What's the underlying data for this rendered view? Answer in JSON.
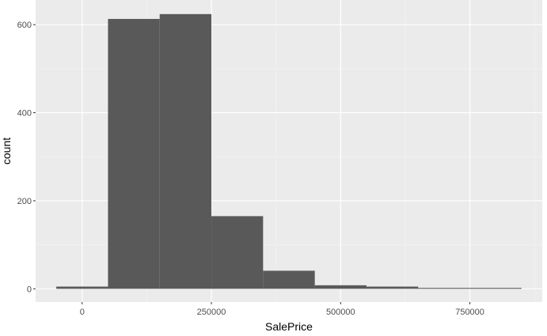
{
  "chart_data": {
    "type": "bar",
    "subtype": "histogram",
    "xlabel": "SalePrice",
    "ylabel": "count",
    "bin_width": 100000,
    "bins": [
      {
        "x_start": -50000,
        "x_end": 50000,
        "count": 5
      },
      {
        "x_start": 50000,
        "x_end": 150000,
        "count": 613
      },
      {
        "x_start": 150000,
        "x_end": 250000,
        "count": 624
      },
      {
        "x_start": 250000,
        "x_end": 350000,
        "count": 165
      },
      {
        "x_start": 350000,
        "x_end": 450000,
        "count": 41
      },
      {
        "x_start": 450000,
        "x_end": 550000,
        "count": 8
      },
      {
        "x_start": 550000,
        "x_end": 650000,
        "count": 5
      },
      {
        "x_start": 650000,
        "x_end": 750000,
        "count": 2
      },
      {
        "x_start": 750000,
        "x_end": 850000,
        "count": 2
      }
    ],
    "xlim": [
      -90000,
      890000
    ],
    "ylim": [
      -30,
      656
    ],
    "x_ticks": [
      {
        "value": 0,
        "label": "0"
      },
      {
        "value": 250000,
        "label": "250000"
      },
      {
        "value": 500000,
        "label": "500000"
      },
      {
        "value": 750000,
        "label": "750000"
      }
    ],
    "y_ticks": [
      {
        "value": 0,
        "label": "0"
      },
      {
        "value": 200,
        "label": "200"
      },
      {
        "value": 400,
        "label": "400"
      },
      {
        "value": 600,
        "label": "600"
      }
    ],
    "colors": {
      "bar_fill": "#595959",
      "panel_background": "#ebebeb",
      "grid_major": "#ffffff",
      "grid_minor": "#f4f4f4",
      "tick_label": "#4d4d4d"
    },
    "grid": true,
    "legend": "none"
  }
}
